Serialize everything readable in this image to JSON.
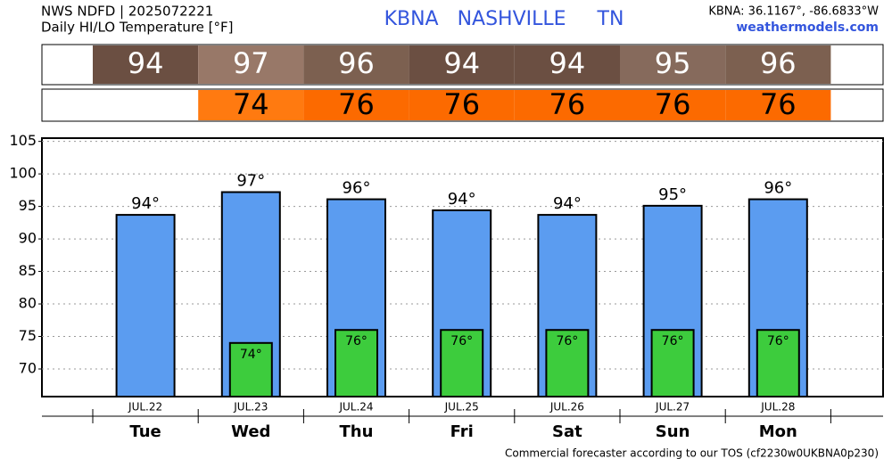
{
  "chart_data": {
    "type": "bar",
    "header": [
      "NWS NDFD | 2025072221",
      "Daily HI/LO Temperature [°F]"
    ],
    "title": "KBNA   NASHVILLE     TN",
    "location": "KBNA: 36.1167°, -86.6833°W",
    "site": "weathermodels.com",
    "footer": "Commercial forecaster according to our TOS (cf2230w0UKBNA0p230)",
    "categories": [
      "Tue",
      "Wed",
      "Thu",
      "Fri",
      "Sat",
      "Sun",
      "Mon"
    ],
    "dates": [
      "JUL.22",
      "JUL.23",
      "JUL.24",
      "JUL.25",
      "JUL.26",
      "JUL.27",
      "JUL.28"
    ],
    "hi_row": [
      "94",
      "97",
      "96",
      "94",
      "94",
      "95",
      "96"
    ],
    "hi_row_colors": [
      "#6b4f42",
      "#987868",
      "#7c6050",
      "#6b4f42",
      "#6b4f42",
      "#866a5c",
      "#7c6050"
    ],
    "lo_row": [
      null,
      "74",
      "76",
      "76",
      "76",
      "76",
      "76"
    ],
    "lo_row_colors": [
      null,
      "#ff7a10",
      "#fc6a00",
      "#fc6a00",
      "#fc6a00",
      "#fc6a00",
      "#fc6a00"
    ],
    "series": [
      {
        "color": "#5b9cf0",
        "values": [
          93.7,
          97.2,
          96.1,
          94.4,
          93.7,
          95.1,
          96.1
        ],
        "value_labels": [
          "94°",
          "97°",
          "96°",
          "94°",
          "94°",
          "95°",
          "96°"
        ]
      },
      {
        "color": "#3dcc3d",
        "values": [
          null,
          74.0,
          76.0,
          76.0,
          76.0,
          76.0,
          76.0
        ],
        "value_labels": [
          null,
          "74°",
          "76°",
          "76°",
          "76°",
          "76°",
          "76°"
        ]
      }
    ],
    "ylim": [
      65.75,
      105.5
    ],
    "yticks": [
      70,
      75,
      80,
      85,
      90,
      95,
      100,
      105
    ],
    "grid": true
  }
}
